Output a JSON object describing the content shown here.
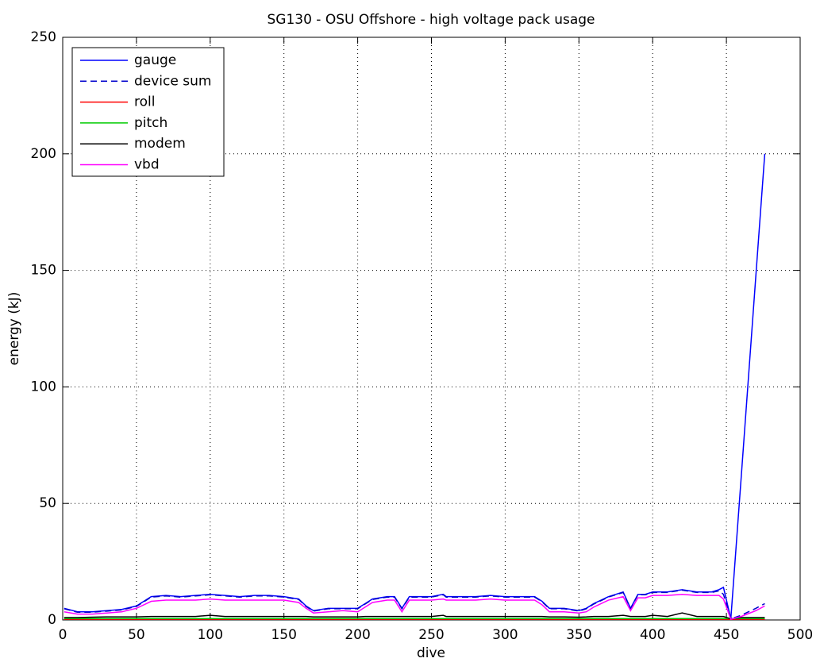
{
  "chart_data": {
    "type": "line",
    "title": "SG130 - OSU Offshore - high voltage pack usage",
    "x_label": "dive",
    "y_label": "energy (kJ)",
    "xlim": [
      0,
      500
    ],
    "xticks": [
      0,
      50,
      100,
      150,
      200,
      250,
      300,
      350,
      400,
      450,
      500
    ],
    "ylim": [
      0,
      250
    ],
    "yticks": [
      0,
      50,
      100,
      150,
      200,
      250
    ],
    "grid": true,
    "legend_position": "upper-left",
    "x": [
      1,
      10,
      20,
      30,
      40,
      50,
      55,
      60,
      70,
      80,
      90,
      100,
      110,
      120,
      130,
      140,
      150,
      160,
      165,
      170,
      180,
      190,
      200,
      205,
      210,
      220,
      225,
      230,
      235,
      240,
      250,
      258,
      260,
      270,
      280,
      290,
      300,
      310,
      320,
      325,
      330,
      340,
      350,
      355,
      360,
      370,
      380,
      385,
      390,
      395,
      400,
      410,
      420,
      430,
      440,
      445,
      448,
      453,
      460,
      470,
      476
    ],
    "series": [
      {
        "name": "gauge",
        "color": "#0000ff",
        "linestyle": "solid",
        "values": [
          5,
          3.5,
          3.5,
          4,
          4.5,
          6,
          8,
          10,
          10.5,
          10,
          10.5,
          11,
          10.5,
          10,
          10.5,
          10.5,
          10,
          9,
          6,
          4,
          5,
          5,
          5,
          7,
          9,
          10,
          10,
          5,
          10,
          10,
          10,
          11,
          10,
          10,
          10,
          10.5,
          10,
          10,
          10,
          8,
          5,
          5,
          4,
          5,
          7,
          10,
          12,
          5,
          11,
          11,
          12,
          12,
          13,
          12,
          12,
          13,
          14,
          0.5,
          61,
          148,
          200
        ]
      },
      {
        "name": "device sum",
        "color": "#0000cc",
        "linestyle": "dashed",
        "values": [
          4.8,
          3.3,
          3.3,
          3.8,
          4.3,
          5.8,
          7.8,
          9.8,
          10.3,
          9.8,
          10.3,
          10.8,
          10.3,
          9.8,
          10.3,
          10.3,
          9.8,
          8.8,
          5.8,
          3.8,
          4.8,
          4.8,
          4.8,
          6.8,
          8.8,
          9.8,
          9.8,
          4.8,
          9.8,
          9.8,
          9.8,
          10.8,
          9.8,
          9.8,
          9.8,
          10.3,
          9.8,
          9.8,
          9.8,
          7.8,
          4.8,
          4.8,
          3.8,
          4.8,
          6.8,
          9.8,
          11.8,
          4.8,
          10.8,
          10.8,
          11.8,
          11.8,
          12.8,
          11.8,
          11.8,
          12.5,
          11,
          0.5,
          2,
          5,
          7
        ]
      },
      {
        "name": "roll",
        "color": "#ff0000",
        "linestyle": "solid",
        "values": [
          0.3,
          0.3,
          0.3,
          0.3,
          0.3,
          0.3,
          0.3,
          0.3,
          0.3,
          0.3,
          0.3,
          0.3,
          0.3,
          0.3,
          0.3,
          0.3,
          0.3,
          0.3,
          0.3,
          0.3,
          0.3,
          0.3,
          0.3,
          0.3,
          0.3,
          0.3,
          0.3,
          0.3,
          0.3,
          0.3,
          0.3,
          0.3,
          0.3,
          0.3,
          0.3,
          0.3,
          0.3,
          0.3,
          0.3,
          0.3,
          0.3,
          0.3,
          0.3,
          0.3,
          0.3,
          0.3,
          0.3,
          0.3,
          0.3,
          0.3,
          0.3,
          0.3,
          0.3,
          0.3,
          0.3,
          0.3,
          0.3,
          0.3,
          0.3,
          0.3,
          0.3
        ]
      },
      {
        "name": "pitch",
        "color": "#00cc00",
        "linestyle": "solid",
        "values": [
          0.6,
          0.6,
          0.6,
          0.6,
          0.6,
          0.6,
          0.6,
          0.6,
          0.6,
          0.6,
          0.6,
          0.6,
          0.6,
          0.6,
          0.6,
          0.6,
          0.6,
          0.6,
          0.6,
          0.6,
          0.6,
          0.6,
          0.6,
          0.6,
          0.6,
          0.6,
          0.6,
          0.6,
          0.6,
          0.6,
          0.6,
          0.6,
          0.6,
          0.6,
          0.6,
          0.6,
          0.6,
          0.6,
          0.6,
          0.6,
          0.6,
          0.6,
          0.6,
          0.6,
          0.6,
          0.6,
          0.6,
          0.6,
          0.6,
          0.6,
          0.6,
          0.6,
          0.6,
          0.6,
          0.6,
          0.6,
          0.6,
          0.6,
          0.6,
          0.6,
          0.6
        ]
      },
      {
        "name": "modem",
        "color": "#000000",
        "linestyle": "solid",
        "values": [
          1,
          1,
          1.2,
          1.3,
          1.3,
          1.3,
          1.4,
          1.5,
          1.5,
          1.5,
          1.5,
          2,
          1.5,
          1.5,
          1.5,
          1.5,
          1.5,
          1.5,
          1.5,
          1.3,
          1.3,
          1.3,
          1.3,
          1.5,
          1.5,
          1.5,
          1.5,
          1.5,
          1.5,
          1.5,
          1.5,
          2,
          1.5,
          1.5,
          1.5,
          1.5,
          1.5,
          1.5,
          1.5,
          1.5,
          1.3,
          1.3,
          1.2,
          1.3,
          1.5,
          1.5,
          2,
          1.5,
          1.5,
          1.5,
          2,
          1.5,
          3,
          1.5,
          1.5,
          1.5,
          1.5,
          0.5,
          1,
          1,
          1
        ]
      },
      {
        "name": "vbd",
        "color": "#ff00ff",
        "linestyle": "solid",
        "values": [
          3.5,
          2.5,
          2.5,
          3,
          3.5,
          5,
          6.5,
          8,
          8.5,
          8.5,
          8.5,
          9,
          8.5,
          8.5,
          8.5,
          8.5,
          8.5,
          7.5,
          5,
          3,
          3.5,
          4,
          3.5,
          5.5,
          7.5,
          8.5,
          8.5,
          3.5,
          8.5,
          8.5,
          8.5,
          9,
          8.5,
          8.5,
          8.5,
          9,
          8.5,
          8.5,
          8.5,
          6.5,
          3.5,
          3.5,
          3,
          3.5,
          5.5,
          8.5,
          10,
          4,
          9.5,
          9.5,
          10.5,
          10.5,
          11,
          10.5,
          10.5,
          10.5,
          9,
          0.3,
          1.5,
          4,
          6
        ]
      }
    ]
  }
}
